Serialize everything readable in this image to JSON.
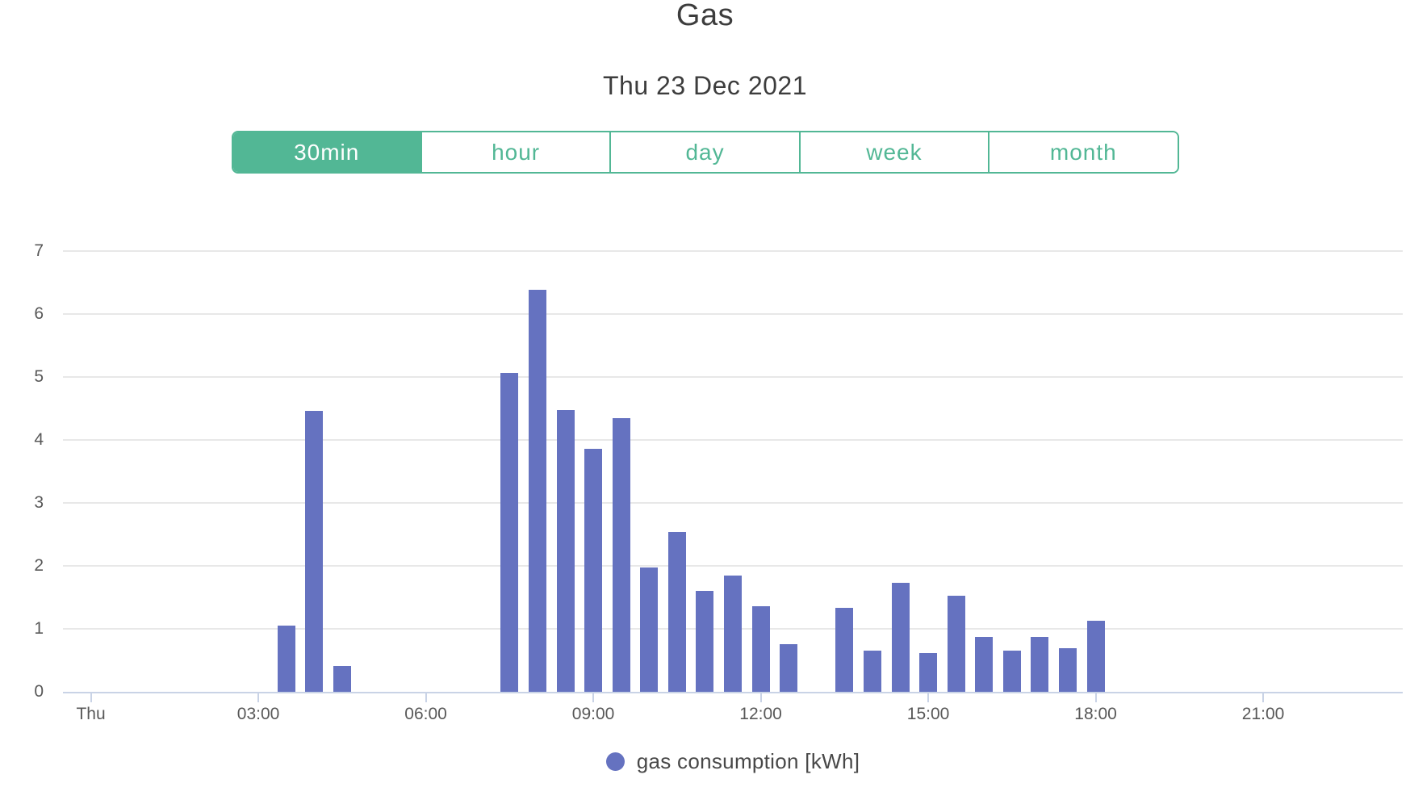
{
  "header": {
    "title": "Gas",
    "subtitle": "Thu 23 Dec 2021"
  },
  "controls": {
    "buttons": [
      {
        "label": "30min",
        "selected": true
      },
      {
        "label": "hour",
        "selected": false
      },
      {
        "label": "day",
        "selected": false
      },
      {
        "label": "week",
        "selected": false
      },
      {
        "label": "month",
        "selected": false
      }
    ]
  },
  "colors": {
    "accent_green": "#52b795",
    "bar_purple": "#6572c0",
    "axis_line": "#c9d3e6",
    "gridline": "#e8e8e8"
  },
  "legend": {
    "label": "gas consumption [kWh]"
  },
  "chart_data": {
    "type": "bar",
    "title": "Gas",
    "subtitle": "Thu 23 Dec 2021",
    "series_name": "gas consumption [kWh]",
    "xlabel": "",
    "ylabel": "",
    "ylim": [
      0,
      7
    ],
    "yticks": [
      0,
      1,
      2,
      3,
      4,
      5,
      6,
      7
    ],
    "grid": true,
    "legend_position": "bottom",
    "bar_color": "#6572c0",
    "x_domain_hours": [
      0,
      24
    ],
    "xticks": [
      {
        "hour": 0,
        "label": "Thu"
      },
      {
        "hour": 3,
        "label": "03:00"
      },
      {
        "hour": 6,
        "label": "06:00"
      },
      {
        "hour": 9,
        "label": "09:00"
      },
      {
        "hour": 12,
        "label": "12:00"
      },
      {
        "hour": 15,
        "label": "15:00"
      },
      {
        "hour": 18,
        "label": "18:00"
      },
      {
        "hour": 21,
        "label": "21:00"
      }
    ],
    "points": [
      {
        "time": "03:30",
        "hour": 3.5,
        "value": 1.05
      },
      {
        "time": "04:00",
        "hour": 4.0,
        "value": 4.46
      },
      {
        "time": "04:30",
        "hour": 4.5,
        "value": 0.41
      },
      {
        "time": "07:30",
        "hour": 7.5,
        "value": 5.07
      },
      {
        "time": "08:00",
        "hour": 8.0,
        "value": 6.38
      },
      {
        "time": "08:30",
        "hour": 8.5,
        "value": 4.47
      },
      {
        "time": "09:00",
        "hour": 9.0,
        "value": 3.86
      },
      {
        "time": "09:30",
        "hour": 9.5,
        "value": 4.35
      },
      {
        "time": "10:00",
        "hour": 10.0,
        "value": 1.97
      },
      {
        "time": "10:30",
        "hour": 10.5,
        "value": 2.54
      },
      {
        "time": "11:00",
        "hour": 11.0,
        "value": 1.6
      },
      {
        "time": "11:30",
        "hour": 11.5,
        "value": 1.85
      },
      {
        "time": "12:00",
        "hour": 12.0,
        "value": 1.36
      },
      {
        "time": "12:30",
        "hour": 12.5,
        "value": 0.76
      },
      {
        "time": "13:30",
        "hour": 13.5,
        "value": 1.33
      },
      {
        "time": "14:00",
        "hour": 14.0,
        "value": 0.65
      },
      {
        "time": "14:30",
        "hour": 14.5,
        "value": 1.73
      },
      {
        "time": "15:00",
        "hour": 15.0,
        "value": 0.62
      },
      {
        "time": "15:30",
        "hour": 15.5,
        "value": 1.52
      },
      {
        "time": "16:00",
        "hour": 16.0,
        "value": 0.87
      },
      {
        "time": "16:30",
        "hour": 16.5,
        "value": 0.65
      },
      {
        "time": "17:00",
        "hour": 17.0,
        "value": 0.87
      },
      {
        "time": "17:30",
        "hour": 17.5,
        "value": 0.69
      },
      {
        "time": "18:00",
        "hour": 18.0,
        "value": 1.13
      }
    ]
  }
}
